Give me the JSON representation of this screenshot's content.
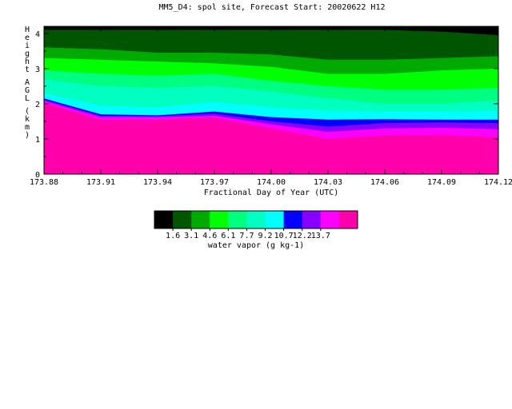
{
  "chart_data": {
    "type": "area",
    "title": "MM5_D4: spol site,  Forecast Start: 20020622 H12",
    "xlabel": "Fractional Day of Year (UTC)",
    "ylabel": "Height AGL (km)",
    "xlim": [
      173.88,
      174.12
    ],
    "ylim": [
      0,
      4.2
    ],
    "x_ticks": [
      "173.88",
      "173.91",
      "173.94",
      "173.97",
      "174.00",
      "174.03",
      "174.06",
      "174.09",
      "174.12"
    ],
    "y_ticks": [
      "0",
      "1",
      "2",
      "3",
      "4"
    ],
    "grid": false,
    "colorbar": {
      "label": "water vapor (g kg-1)",
      "tick_labels": [
        "1.6",
        "3.1",
        "4.6",
        "6.1",
        "7.7",
        "9.2",
        "10.7",
        "12.2",
        "13.7"
      ],
      "colors": [
        "#000000",
        "#005500",
        "#00aa00",
        "#00ff00",
        "#00ff80",
        "#00ffc0",
        "#00ffff",
        "#0000ff",
        "#8800ff",
        "#ff00ff",
        "#ff00aa"
      ]
    },
    "x": [
      173.88,
      173.91,
      173.94,
      173.97,
      174.0,
      174.03,
      174.06,
      174.09,
      174.12
    ],
    "series": [
      {
        "color": "#ff00aa",
        "values": [
          2.02,
          1.55,
          1.55,
          1.6,
          1.3,
          1.0,
          1.1,
          1.12,
          1.05
        ]
      },
      {
        "color": "#ff00ff",
        "values": [
          2.08,
          1.62,
          1.62,
          1.66,
          1.42,
          1.2,
          1.3,
          1.32,
          1.28
        ]
      },
      {
        "color": "#8800ff",
        "values": [
          2.12,
          1.66,
          1.65,
          1.72,
          1.5,
          1.35,
          1.45,
          1.47,
          1.45
        ]
      },
      {
        "color": "#0000ff",
        "values": [
          2.15,
          1.7,
          1.67,
          1.78,
          1.62,
          1.55,
          1.56,
          1.55,
          1.55
        ]
      },
      {
        "color": "#00ffff",
        "values": [
          2.3,
          1.95,
          1.9,
          2.05,
          1.9,
          1.8,
          1.78,
          1.78,
          1.8
        ]
      },
      {
        "color": "#00ffc0",
        "values": [
          2.7,
          2.5,
          2.45,
          2.5,
          2.35,
          2.15,
          2.0,
          2.0,
          2.1
        ]
      },
      {
        "color": "#00ff80",
        "values": [
          2.95,
          2.85,
          2.8,
          2.85,
          2.65,
          2.5,
          2.4,
          2.4,
          2.45
        ]
      },
      {
        "color": "#00ff00",
        "values": [
          3.3,
          3.25,
          3.2,
          3.15,
          3.05,
          2.85,
          2.85,
          2.95,
          3.0
        ]
      },
      {
        "color": "#00aa00",
        "values": [
          3.6,
          3.55,
          3.45,
          3.45,
          3.4,
          3.25,
          3.25,
          3.3,
          3.35
        ]
      },
      {
        "color": "#005500",
        "values": [
          4.1,
          4.1,
          4.1,
          4.1,
          4.1,
          4.1,
          4.1,
          4.05,
          3.95
        ]
      }
    ]
  }
}
